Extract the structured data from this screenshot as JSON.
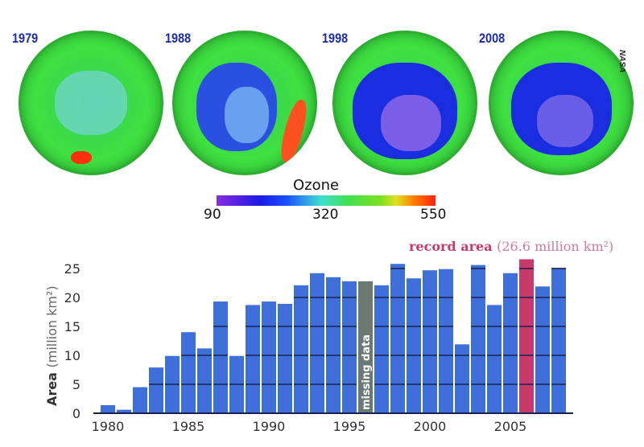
{
  "maps": {
    "panels": [
      {
        "year": "1979"
      },
      {
        "year": "1988"
      },
      {
        "year": "1998"
      },
      {
        "year": "2008"
      }
    ],
    "credit": "NASA",
    "colorbar": {
      "title": "Ozone",
      "min": "90",
      "mid": "320",
      "max": "550",
      "colors": [
        "#8a2be2",
        "#1a1ae6",
        "#40e0d0",
        "#40e050",
        "#e0e020",
        "#ff2010"
      ]
    }
  },
  "chart_data": {
    "type": "bar",
    "ylabel": "Area",
    "ylabel_unit": "(million km²)",
    "ylim": [
      0,
      25
    ],
    "yticks": [
      "0",
      "5",
      "10",
      "15",
      "20",
      "25"
    ],
    "xticks": [
      "1980",
      "1985",
      "1990",
      "1995",
      "2000",
      "2005"
    ],
    "grid": true,
    "x": [
      1980,
      1981,
      1982,
      1983,
      1984,
      1985,
      1986,
      1987,
      1988,
      1989,
      1990,
      1991,
      1992,
      1993,
      1994,
      1995,
      1996,
      1997,
      1998,
      1999,
      2000,
      2001,
      2002,
      2003,
      2004,
      2005,
      2006,
      2007,
      2008
    ],
    "values": [
      1.4,
      0.6,
      4.5,
      7.9,
      9.9,
      14.0,
      11.2,
      19.3,
      9.9,
      18.7,
      19.3,
      18.9,
      22.1,
      24.2,
      23.5,
      22.8,
      null,
      22.1,
      25.8,
      23.3,
      24.7,
      24.9,
      11.9,
      25.6,
      18.7,
      24.2,
      26.6,
      21.9,
      25.1
    ],
    "bar_color": "#3f6fd8",
    "missing": {
      "year": 1996,
      "label": "missing data",
      "color": "#6b7a70"
    },
    "record": {
      "year": 2006,
      "label": "record area",
      "detail": "(26.6 million km²)",
      "color": "#c83a6a"
    }
  }
}
